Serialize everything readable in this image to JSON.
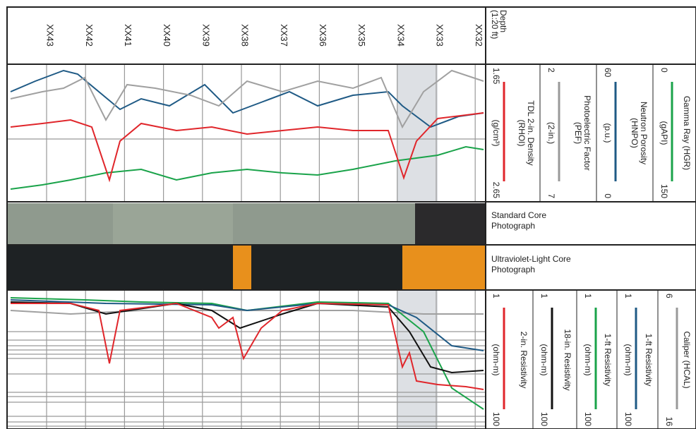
{
  "depth": {
    "title_lines": [
      "Depth",
      "(1:20 ft)"
    ],
    "labels": [
      "XX43",
      "XX42",
      "XX41",
      "XX40",
      "XX39",
      "XX38",
      "XX37",
      "XX36",
      "XX35",
      "XX34",
      "XX33",
      "XX32"
    ]
  },
  "track1": [
    {
      "title_lines": [
        "Gamma Ray (HGR)"
      ],
      "min": "0",
      "unit": "(gAPI)",
      "max": "150",
      "color": "#1aa34a"
    },
    {
      "title_lines": [
        "Neutron Porosity",
        "(HNPO)"
      ],
      "min": "60",
      "unit": "(p.u.)",
      "max": "0",
      "color": "#1f5a85"
    },
    {
      "title_lines": [
        "Photoelectric Factor",
        "(PEF)"
      ],
      "min": "2",
      "unit": "(2-in.)",
      "max": "7",
      "color": "#999999"
    },
    {
      "title_lines": [
        "TDL 2-in. Density",
        "(RHOI)"
      ],
      "min": "1.65",
      "unit": "(g/cm³)",
      "max": "2.65",
      "color": "#e0262b"
    }
  ],
  "photos": [
    {
      "label": "Standard Core Photograph"
    },
    {
      "label": "Ultraviolet-Light Core Photograph"
    }
  ],
  "track3": [
    {
      "title_lines": [
        "Caliper (HCAL)"
      ],
      "min": "6",
      "unit": "",
      "max": "16",
      "color": "#999999"
    },
    {
      "title_lines": [
        "1-ft Resistivity"
      ],
      "min": "1",
      "unit": "(ohm-m)",
      "max": "100",
      "color": "#1f5a85"
    },
    {
      "title_lines": [
        "1-ft Resistivity"
      ],
      "min": "1",
      "unit": "(ohm-m)",
      "max": "100",
      "color": "#1aa34a"
    },
    {
      "title_lines": [
        "18-in. Resistivity"
      ],
      "min": "1",
      "unit": "(ohm-m)",
      "max": "100",
      "color": "#111111"
    },
    {
      "title_lines": [
        "2-in. Resistivity"
      ],
      "min": "1",
      "unit": "(ohm-m)",
      "max": "100",
      "color": "#e0262b"
    }
  ]
}
